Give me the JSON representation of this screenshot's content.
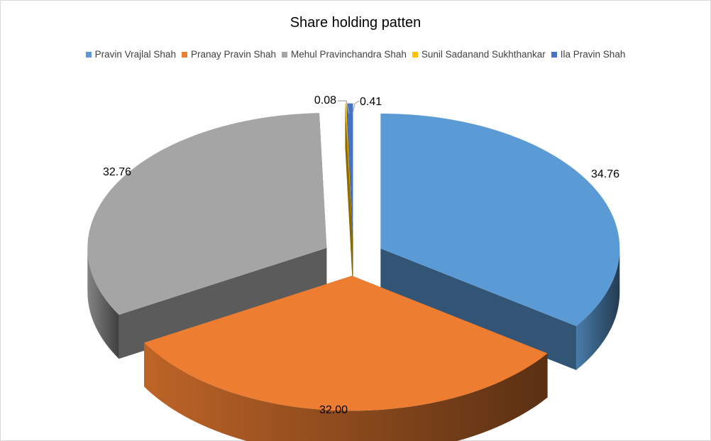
{
  "chart_data": {
    "type": "pie",
    "variant": "3d-exploded",
    "title": "Share holding patten",
    "legend_position": "top",
    "slices": [
      {
        "name": "Pravin Vrajlal Shah",
        "value": 34.76,
        "label": "34.76",
        "color": "#5b9bd5"
      },
      {
        "name": "Pranay Pravin Shah",
        "value": 32.0,
        "label": "32.00",
        "color": "#ed7d31"
      },
      {
        "name": "Mehul Pravinchandra Shah",
        "value": 32.76,
        "label": "32.76",
        "color": "#a5a5a5"
      },
      {
        "name": "Sunil Sadanand Sukhthankar",
        "value": 0.08,
        "label": "0.08",
        "color": "#ffc000"
      },
      {
        "name": "Ila Pravin Shah",
        "value": 0.41,
        "label": "0.41",
        "color": "#4472c4"
      }
    ]
  }
}
